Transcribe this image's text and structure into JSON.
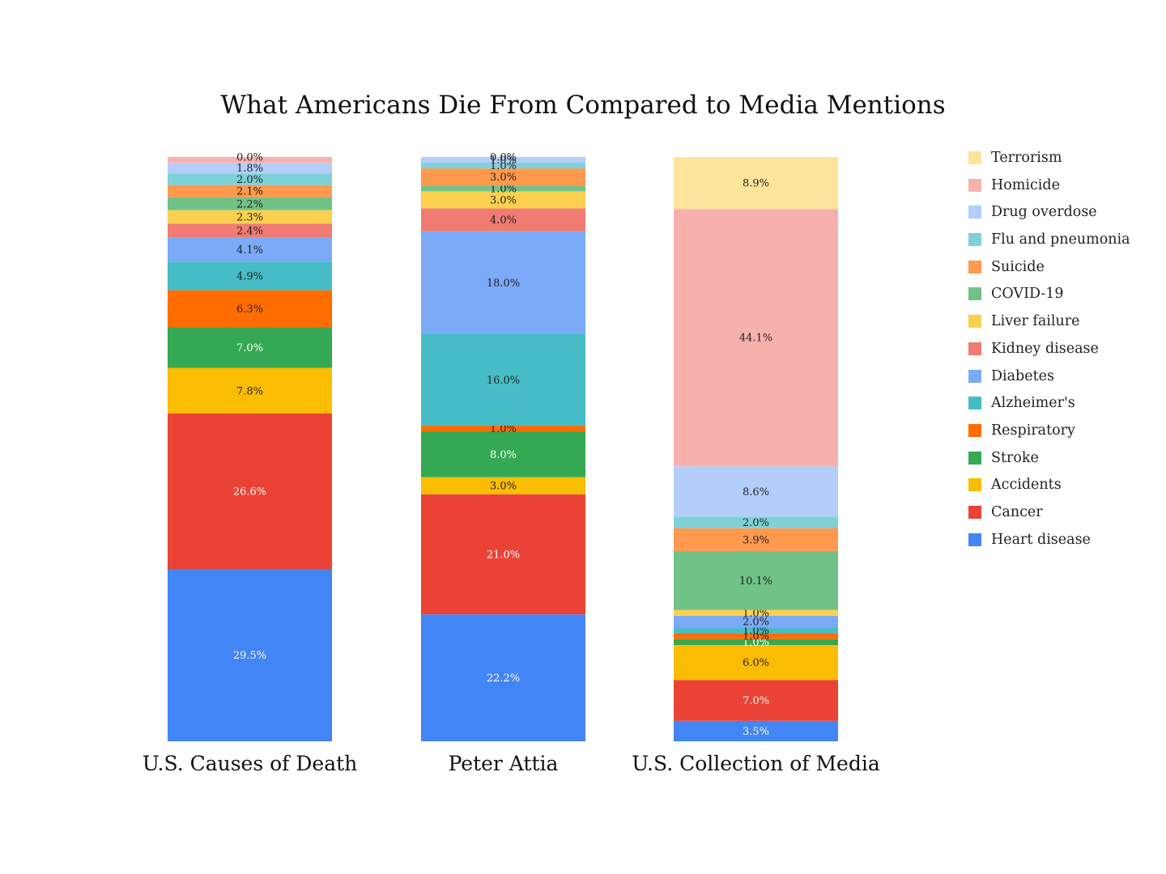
{
  "chart_data": {
    "type": "bar",
    "stacked": true,
    "title": "What Americans Die From Compared to Media Mentions",
    "categories": [
      "U.S. Causes of Death",
      "Peter Attia",
      "U.S. Collection of Media"
    ],
    "legend_position": "right",
    "series": [
      {
        "name": "Heart disease",
        "color": "#4285F4",
        "values": [
          29.5,
          22.2,
          3.5
        ],
        "labels": [
          "29.5%",
          "22.2%",
          "3.5%"
        ]
      },
      {
        "name": "Cancer",
        "color": "#EA4335",
        "values": [
          26.6,
          21.0,
          7.0
        ],
        "labels": [
          "26.6%",
          "21.0%",
          "7.0%"
        ]
      },
      {
        "name": "Accidents",
        "color": "#FBBC04",
        "values": [
          7.8,
          3.0,
          6.0
        ],
        "labels": [
          "7.8%",
          "3.0%",
          "6.0%"
        ]
      },
      {
        "name": "Stroke",
        "color": "#34A853",
        "values": [
          7.0,
          8.0,
          1.0
        ],
        "labels": [
          "7.0%",
          "8.0%",
          "1.0%"
        ]
      },
      {
        "name": "Respiratory",
        "color": "#FF6D01",
        "values": [
          6.3,
          1.0,
          1.0
        ],
        "labels": [
          "6.3%",
          "1.0%",
          "1.0%"
        ]
      },
      {
        "name": "Alzheimer's",
        "color": "#46BDC6",
        "values": [
          4.9,
          16.0,
          1.0
        ],
        "labels": [
          "4.9%",
          "16.0%",
          "1.0%"
        ]
      },
      {
        "name": "Diabetes",
        "color": "#7BAAF7",
        "values": [
          4.1,
          18.0,
          2.0
        ],
        "labels": [
          "4.1%",
          "18.0%",
          "2.0%"
        ]
      },
      {
        "name": "Kidney disease",
        "color": "#F07B72",
        "values": [
          2.4,
          4.0,
          0.0
        ],
        "labels": [
          "2.4%",
          "4.0%",
          ""
        ]
      },
      {
        "name": "Liver failure",
        "color": "#FCD04F",
        "values": [
          2.3,
          3.0,
          1.0
        ],
        "labels": [
          "2.3%",
          "3.0%",
          "1.0%"
        ]
      },
      {
        "name": "COVID-19",
        "color": "#71C287",
        "values": [
          2.2,
          1.0,
          10.1
        ],
        "labels": [
          "2.2%",
          "1.0%",
          "10.1%"
        ]
      },
      {
        "name": "Suicide",
        "color": "#FF994D",
        "values": [
          2.1,
          3.0,
          3.9
        ],
        "labels": [
          "2.1%",
          "3.0%",
          "3.9%"
        ]
      },
      {
        "name": "Flu and pneumonia",
        "color": "#7ED1D7",
        "values": [
          2.0,
          1.0,
          2.0
        ],
        "labels": [
          "2.0%",
          "1.0%",
          "2.0%"
        ]
      },
      {
        "name": "Drug overdose",
        "color": "#B3CEFB",
        "values": [
          1.8,
          1.0,
          8.6
        ],
        "labels": [
          "1.8%",
          "1.0%",
          "8.6%"
        ]
      },
      {
        "name": "Homicide",
        "color": "#F7B1AD",
        "values": [
          1.0,
          0.0,
          44.1
        ],
        "labels": [
          "",
          "",
          "44.1%"
        ]
      },
      {
        "name": "Terrorism",
        "color": "#FDE49B",
        "values": [
          0.0,
          0.0,
          8.9
        ],
        "labels": [
          "0.0%",
          "0.0%",
          "8.9%"
        ]
      }
    ]
  }
}
